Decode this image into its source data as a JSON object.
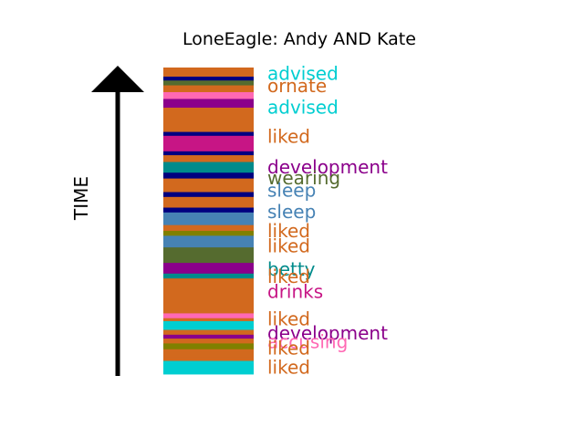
{
  "chart_data": {
    "type": "bar",
    "title": "LoneEagle: Andy AND Kate",
    "ylabel": "TIME",
    "stack": [
      {
        "color": "#00ced1"
      },
      {
        "color": "#d2691e"
      },
      {
        "color": "#d2691e"
      },
      {
        "color": "#808000"
      },
      {
        "color": "#d2691e"
      },
      {
        "color": "#8b008b"
      },
      {
        "color": "#d2691e"
      },
      {
        "color": "#00ced1"
      },
      {
        "color": "#d2691e"
      },
      {
        "color": "#ff69b4"
      },
      {
        "color": "#d2691e"
      },
      {
        "color": "#008b8b"
      },
      {
        "color": "#8b008b"
      },
      {
        "color": "#556b2f"
      },
      {
        "color": "#4682b4"
      },
      {
        "color": "#808000"
      },
      {
        "color": "#d2691e"
      },
      {
        "color": "#4682b4"
      },
      {
        "color": "#000080"
      },
      {
        "color": "#d2691e"
      },
      {
        "color": "#000080"
      },
      {
        "color": "#d2691e"
      },
      {
        "color": "#000080"
      },
      {
        "color": "#008b8b"
      },
      {
        "color": "#d2691e"
      },
      {
        "color": "#000080"
      },
      {
        "color": "#c71585"
      },
      {
        "color": "#000080"
      },
      {
        "color": "#d2691e"
      },
      {
        "color": "#8b008b"
      },
      {
        "color": "#ff69b4"
      },
      {
        "color": "#d2691e"
      },
      {
        "color": "#556b2f"
      },
      {
        "color": "#000080"
      },
      {
        "color": "#d2691e"
      }
    ],
    "labels": [
      {
        "text": "advised",
        "color": "#00ced1",
        "t": 0.98
      },
      {
        "text": "ornate",
        "color": "#d2691e",
        "t": 0.94
      },
      {
        "text": "advised",
        "color": "#00ced1",
        "t": 0.87
      },
      {
        "text": "liked",
        "color": "#d2691e",
        "t": 0.775
      },
      {
        "text": "development",
        "color": "#8b008b",
        "t": 0.675
      },
      {
        "text": "wearing",
        "color": "#556b2f",
        "t": 0.64
      },
      {
        "text": "sleep",
        "color": "#4682b4",
        "t": 0.6
      },
      {
        "text": "sleep",
        "color": "#4682b4",
        "t": 0.53
      },
      {
        "text": "liked",
        "color": "#d2691e",
        "t": 0.467
      },
      {
        "text": "liked",
        "color": "#d2691e",
        "t": 0.418
      },
      {
        "text": "betty",
        "color": "#008b8b",
        "t": 0.343
      },
      {
        "text": "liked",
        "color": "#d2691e",
        "t": 0.318
      },
      {
        "text": "drinks",
        "color": "#c71585",
        "t": 0.269
      },
      {
        "text": "liked",
        "color": "#d2691e",
        "t": 0.18
      },
      {
        "text": "development",
        "color": "#8b008b",
        "t": 0.134
      },
      {
        "text": "accusing",
        "color": "#ff69b4",
        "t": 0.105
      },
      {
        "text": "liked",
        "color": "#d2691e",
        "t": 0.085
      },
      {
        "text": "liked",
        "color": "#d2691e",
        "t": 0.022
      }
    ],
    "segment_weights": [
      14,
      4,
      8,
      6,
      5,
      4,
      5,
      9,
      3,
      5,
      36,
      5,
      11,
      16,
      12,
      5,
      6,
      13,
      5,
      11,
      5,
      14,
      6,
      11,
      7,
      4,
      16,
      4,
      25,
      9,
      7,
      7,
      5,
      4,
      9
    ]
  }
}
